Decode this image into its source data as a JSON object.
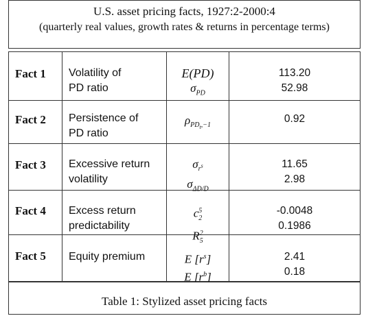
{
  "header": {
    "title": "U.S. asset pricing facts, 1927:2-2000:4",
    "subtitle": "(quarterly real values, growth rates & returns in percentage terms)"
  },
  "rows": [
    {
      "fact": "Fact 1",
      "desc": [
        "Volatility of",
        "PD ratio"
      ],
      "values": [
        "113.20",
        "52.98"
      ]
    },
    {
      "fact": "Fact 2",
      "desc": [
        "Persistence of",
        "PD ratio"
      ],
      "values": [
        "0.92"
      ]
    },
    {
      "fact": "Fact 3",
      "desc": [
        "Excessive return",
        "volatility"
      ],
      "values": [
        "11.65",
        "2.98"
      ]
    },
    {
      "fact": "Fact 4",
      "desc": [
        "Excess return",
        "predictability"
      ],
      "values": [
        "-0.0048",
        "0.1986"
      ]
    },
    {
      "fact": "Fact 5",
      "desc": [
        "Equity premium",
        ""
      ],
      "values": [
        "2.41",
        "0.18"
      ]
    }
  ],
  "caption": "Table 1: Stylized asset pricing facts"
}
